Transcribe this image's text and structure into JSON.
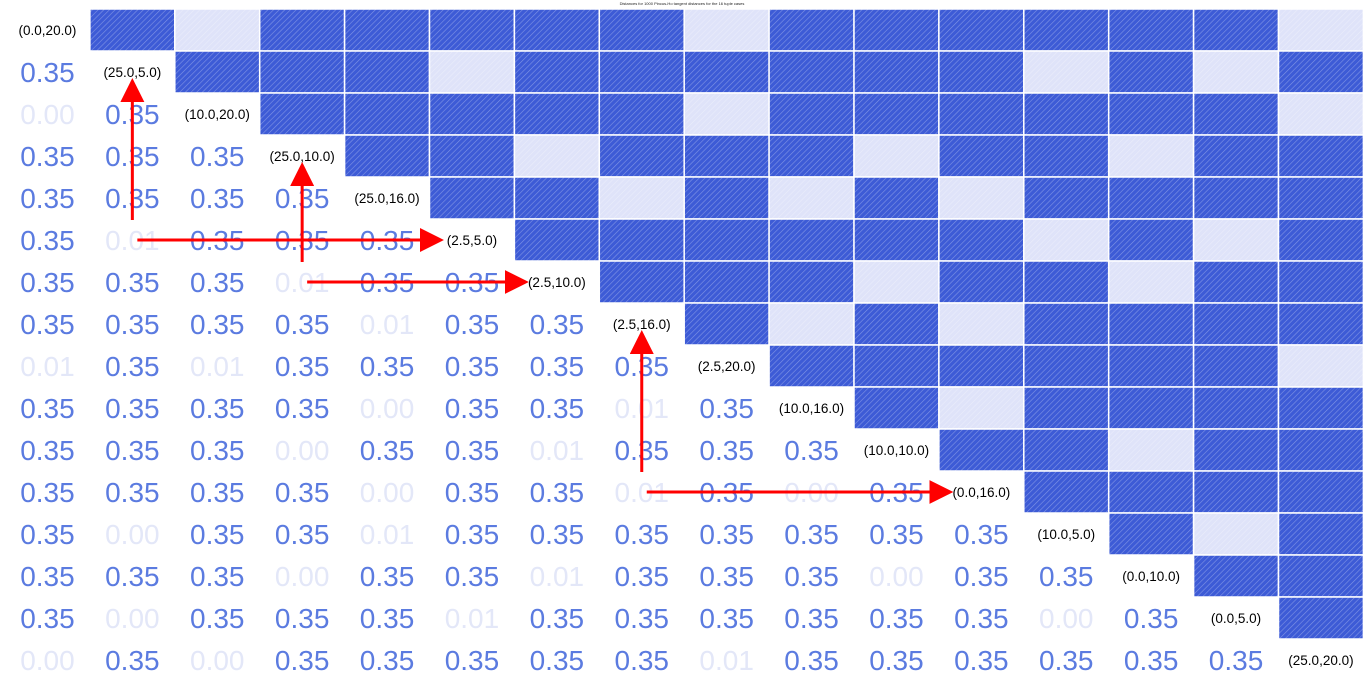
{
  "chart_data": {
    "type": "heatmap",
    "title": "Distances for 1000 Pincus-Ho tangent distances for the 16 tuple cases",
    "labels": [
      "(0.0,20.0)",
      "(25.0,5.0)",
      "(10.0,20.0)",
      "(25.0,10.0)",
      "(25.0,16.0)",
      "(2.5,5.0)",
      "(2.5,10.0)",
      "(2.5,16.0)",
      "(2.5,20.0)",
      "(10.0,16.0)",
      "(10.0,10.0)",
      "(0.0,16.0)",
      "(10.0,5.0)",
      "(0.0,10.0)",
      "(0.0,5.0)",
      "(25.0,20.0)"
    ],
    "lower_values": [
      [],
      [
        "0.35"
      ],
      [
        "0.00",
        "0.35"
      ],
      [
        "0.35",
        "0.35",
        "0.35"
      ],
      [
        "0.35",
        "0.35",
        "0.35",
        "0.35"
      ],
      [
        "0.35",
        "0.01",
        "0.35",
        "0.35",
        "0.35"
      ],
      [
        "0.35",
        "0.35",
        "0.35",
        "0.01",
        "0.35",
        "0.35"
      ],
      [
        "0.35",
        "0.35",
        "0.35",
        "0.35",
        "0.01",
        "0.35",
        "0.35"
      ],
      [
        "0.01",
        "0.35",
        "0.01",
        "0.35",
        "0.35",
        "0.35",
        "0.35",
        "0.35"
      ],
      [
        "0.35",
        "0.35",
        "0.35",
        "0.35",
        "0.00",
        "0.35",
        "0.35",
        "0.01",
        "0.35"
      ],
      [
        "0.35",
        "0.35",
        "0.35",
        "0.00",
        "0.35",
        "0.35",
        "0.01",
        "0.35",
        "0.35",
        "0.35"
      ],
      [
        "0.35",
        "0.35",
        "0.35",
        "0.35",
        "0.00",
        "0.35",
        "0.35",
        "0.01",
        "0.35",
        "0.00",
        "0.35"
      ],
      [
        "0.35",
        "0.00",
        "0.35",
        "0.35",
        "0.01",
        "0.35",
        "0.35",
        "0.35",
        "0.35",
        "0.35",
        "0.35",
        "0.35"
      ],
      [
        "0.35",
        "0.35",
        "0.35",
        "0.00",
        "0.35",
        "0.35",
        "0.01",
        "0.35",
        "0.35",
        "0.35",
        "0.00",
        "0.35",
        "0.35"
      ],
      [
        "0.35",
        "0.00",
        "0.35",
        "0.35",
        "0.35",
        "0.01",
        "0.35",
        "0.35",
        "0.35",
        "0.35",
        "0.35",
        "0.35",
        "0.00",
        "0.35"
      ],
      [
        "0.00",
        "0.35",
        "0.00",
        "0.35",
        "0.35",
        "0.35",
        "0.35",
        "0.35",
        "0.01",
        "0.35",
        "0.35",
        "0.35",
        "0.35",
        "0.35",
        "0.35"
      ]
    ],
    "upper_light_cells": [
      [
        0,
        2
      ],
      [
        0,
        8
      ],
      [
        0,
        15
      ],
      [
        1,
        5
      ],
      [
        1,
        12
      ],
      [
        1,
        14
      ],
      [
        2,
        8
      ],
      [
        2,
        15
      ],
      [
        3,
        6
      ],
      [
        3,
        10
      ],
      [
        3,
        13
      ],
      [
        4,
        7
      ],
      [
        4,
        9
      ],
      [
        4,
        11
      ],
      [
        5,
        12
      ],
      [
        5,
        14
      ],
      [
        6,
        10
      ],
      [
        6,
        13
      ],
      [
        7,
        9
      ],
      [
        7,
        11
      ],
      [
        8,
        15
      ],
      [
        9,
        11
      ],
      [
        10,
        13
      ],
      [
        12,
        14
      ]
    ],
    "colors": {
      "strong": "#3d5bd6",
      "light": "#dfe3f9",
      "hatch": "#8a8a8a",
      "arrow": "#ff0000"
    },
    "arrows": [
      {
        "from_row": 5,
        "from_col": 1,
        "to_row": 1,
        "to_col": 1
      },
      {
        "from_row": 5,
        "from_col": 1,
        "to_row": 5,
        "to_col": 5
      },
      {
        "from_row": 6,
        "from_col": 3,
        "to_row": 3,
        "to_col": 3
      },
      {
        "from_row": 6,
        "from_col": 3,
        "to_row": 6,
        "to_col": 6
      },
      {
        "from_row": 11,
        "from_col": 7,
        "to_row": 7,
        "to_col": 7
      },
      {
        "from_row": 11,
        "from_col": 7,
        "to_row": 11,
        "to_col": 11
      }
    ]
  }
}
